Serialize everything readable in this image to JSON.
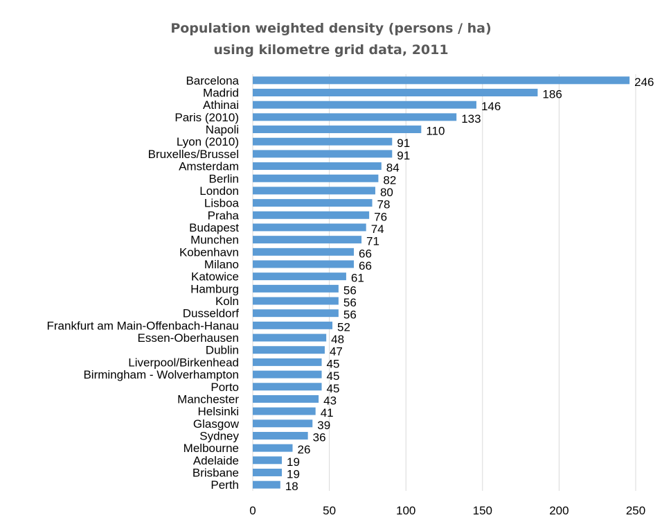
{
  "chart_data": {
    "type": "bar",
    "orientation": "horizontal",
    "title": "Population weighted density (persons / ha)",
    "subtitle": "using kilometre grid data, 2011",
    "xlabel": "",
    "ylabel": "",
    "xlim": [
      0,
      250
    ],
    "xticks": [
      0,
      50,
      100,
      150,
      200,
      250
    ],
    "grid": true,
    "data_labels": true,
    "categories": [
      "Barcelona",
      "Madrid",
      "Athinai",
      "Paris (2010)",
      "Napoli",
      "Lyon (2010)",
      "Bruxelles/Brussel",
      "Amsterdam",
      "Berlin",
      "London",
      "Lisboa",
      "Praha",
      "Budapest",
      "Munchen",
      "Kobenhavn",
      "Milano",
      "Katowice",
      "Hamburg",
      "Koln",
      "Dusseldorf",
      "Frankfurt am Main-Offenbach-Hanau",
      "Essen-Oberhausen",
      "Dublin",
      "Liverpool/Birkenhead",
      "Birmingham - Wolverhampton",
      "Porto",
      "Manchester",
      "Helsinki",
      "Glasgow",
      "Sydney",
      "Melbourne",
      "Adelaide",
      "Brisbane",
      "Perth"
    ],
    "values": [
      246,
      186,
      146,
      133,
      110,
      91,
      91,
      84,
      82,
      80,
      78,
      76,
      74,
      71,
      66,
      66,
      61,
      56,
      56,
      56,
      52,
      48,
      47,
      45,
      45,
      45,
      43,
      41,
      39,
      36,
      26,
      19,
      19,
      18
    ],
    "colors": {
      "bar": "#5b9bd5",
      "grid": "#d9d9d9",
      "text": "#000000",
      "title": "#595959"
    }
  }
}
